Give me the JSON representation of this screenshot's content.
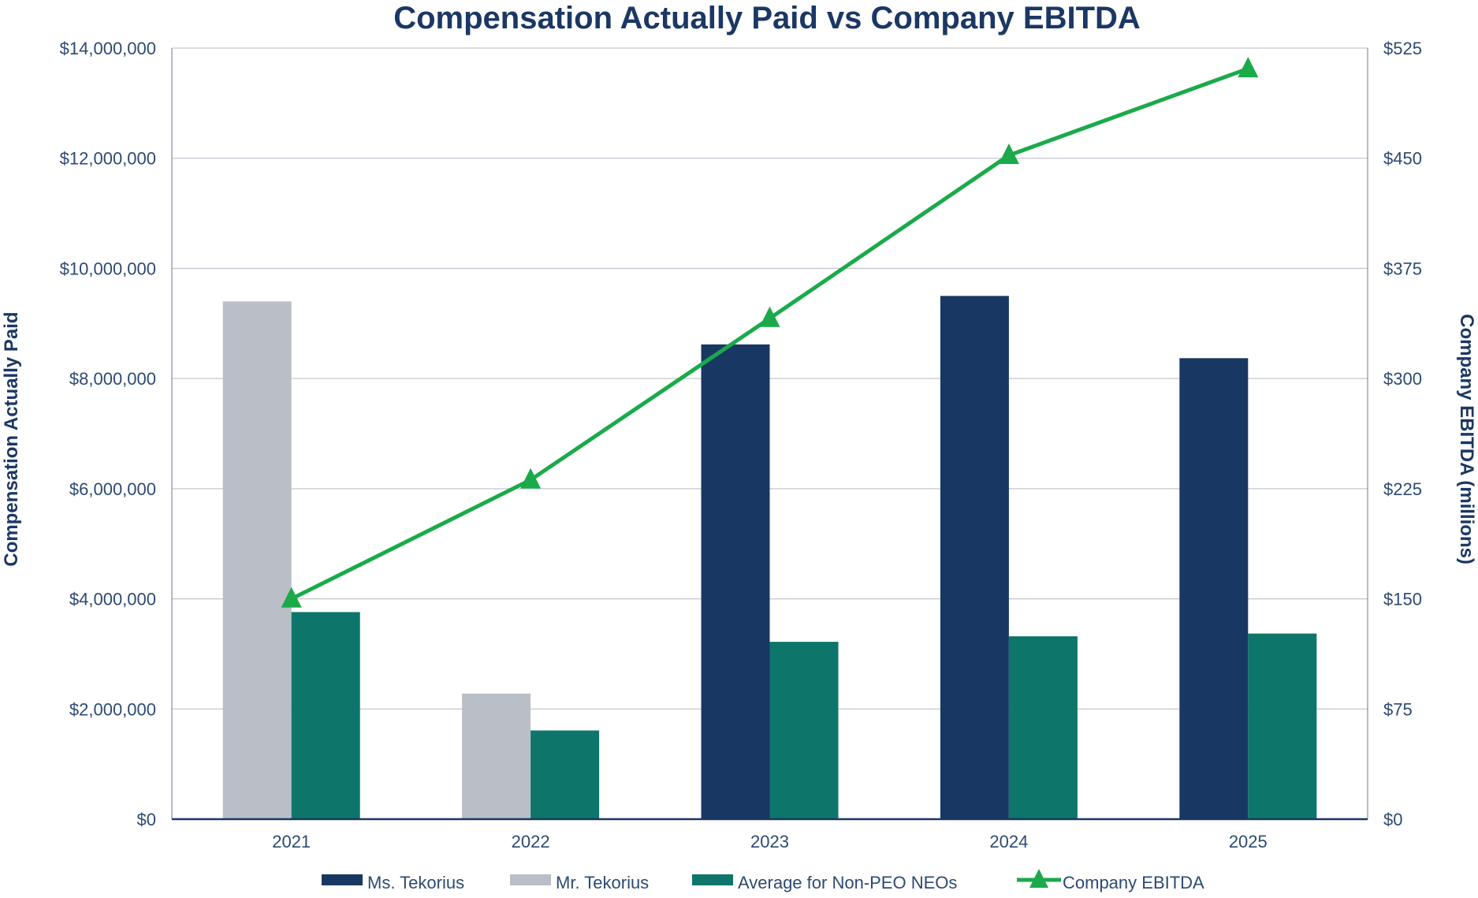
{
  "chart_data": {
    "type": "bar",
    "title": "Compensation Actually Paid vs Company EBITDA",
    "categories": [
      "2021",
      "2022",
      "2023",
      "2024",
      "2025"
    ],
    "ylabel": "Compensation Actually Paid",
    "y2label": "Company EBITDA (millions)",
    "ylim": [
      0,
      14000000
    ],
    "y2lim": [
      0,
      525
    ],
    "yticks": [
      0,
      2000000,
      4000000,
      6000000,
      8000000,
      10000000,
      12000000,
      14000000
    ],
    "ytick_labels": [
      "$0",
      "$2,000,000",
      "$4,000,000",
      "$6,000,000",
      "$8,000,000",
      "$10,000,000",
      "$12,000,000",
      "$14,000,000"
    ],
    "y2ticks": [
      0,
      75,
      150,
      225,
      300,
      375,
      450,
      525
    ],
    "y2tick_labels": [
      "$0",
      "$75",
      "$150",
      "$225",
      "$300",
      "$375",
      "$450",
      "$525"
    ],
    "grid": true,
    "legend_position": "bottom",
    "series": [
      {
        "name": "Ms. Tekorius",
        "type": "bar",
        "color": "#183863",
        "slot": 0,
        "values": [
          null,
          null,
          8620000,
          9500000,
          8370000
        ]
      },
      {
        "name": "Mr. Tekorius",
        "type": "bar",
        "color": "#b9bec7",
        "slot": 0,
        "values": [
          9400000,
          2280000,
          null,
          null,
          null
        ]
      },
      {
        "name": "Average for Non-PEO NEOs",
        "type": "bar",
        "color": "#0e756a",
        "slot": 1,
        "values": [
          3760000,
          1610000,
          3220000,
          3320000,
          3370000
        ]
      },
      {
        "name": "Company EBITDA",
        "type": "line",
        "axis": "y2",
        "color": "#1aaa4a",
        "marker": "triangle",
        "values": [
          150,
          231,
          341,
          452,
          511
        ]
      }
    ]
  }
}
